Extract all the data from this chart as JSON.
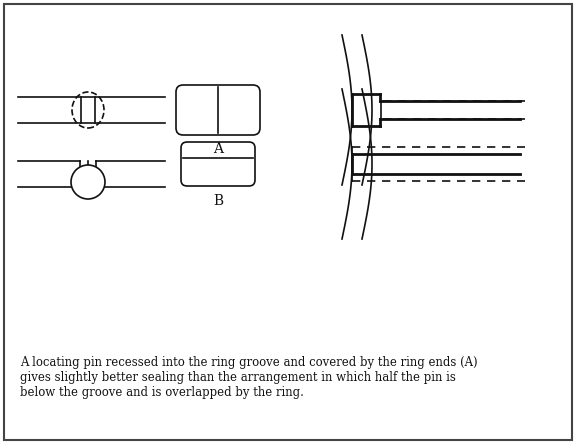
{
  "caption": "A locating pin recessed into the ring groove and covered by the ring ends (A)\ngives slightly better sealing than the arrangement in which half the pin is\nbelow the groove and is overlapped by the ring.",
  "label_A": "A",
  "label_B": "B",
  "lc": "#111111",
  "lw": 1.2,
  "lw2": 2.0
}
